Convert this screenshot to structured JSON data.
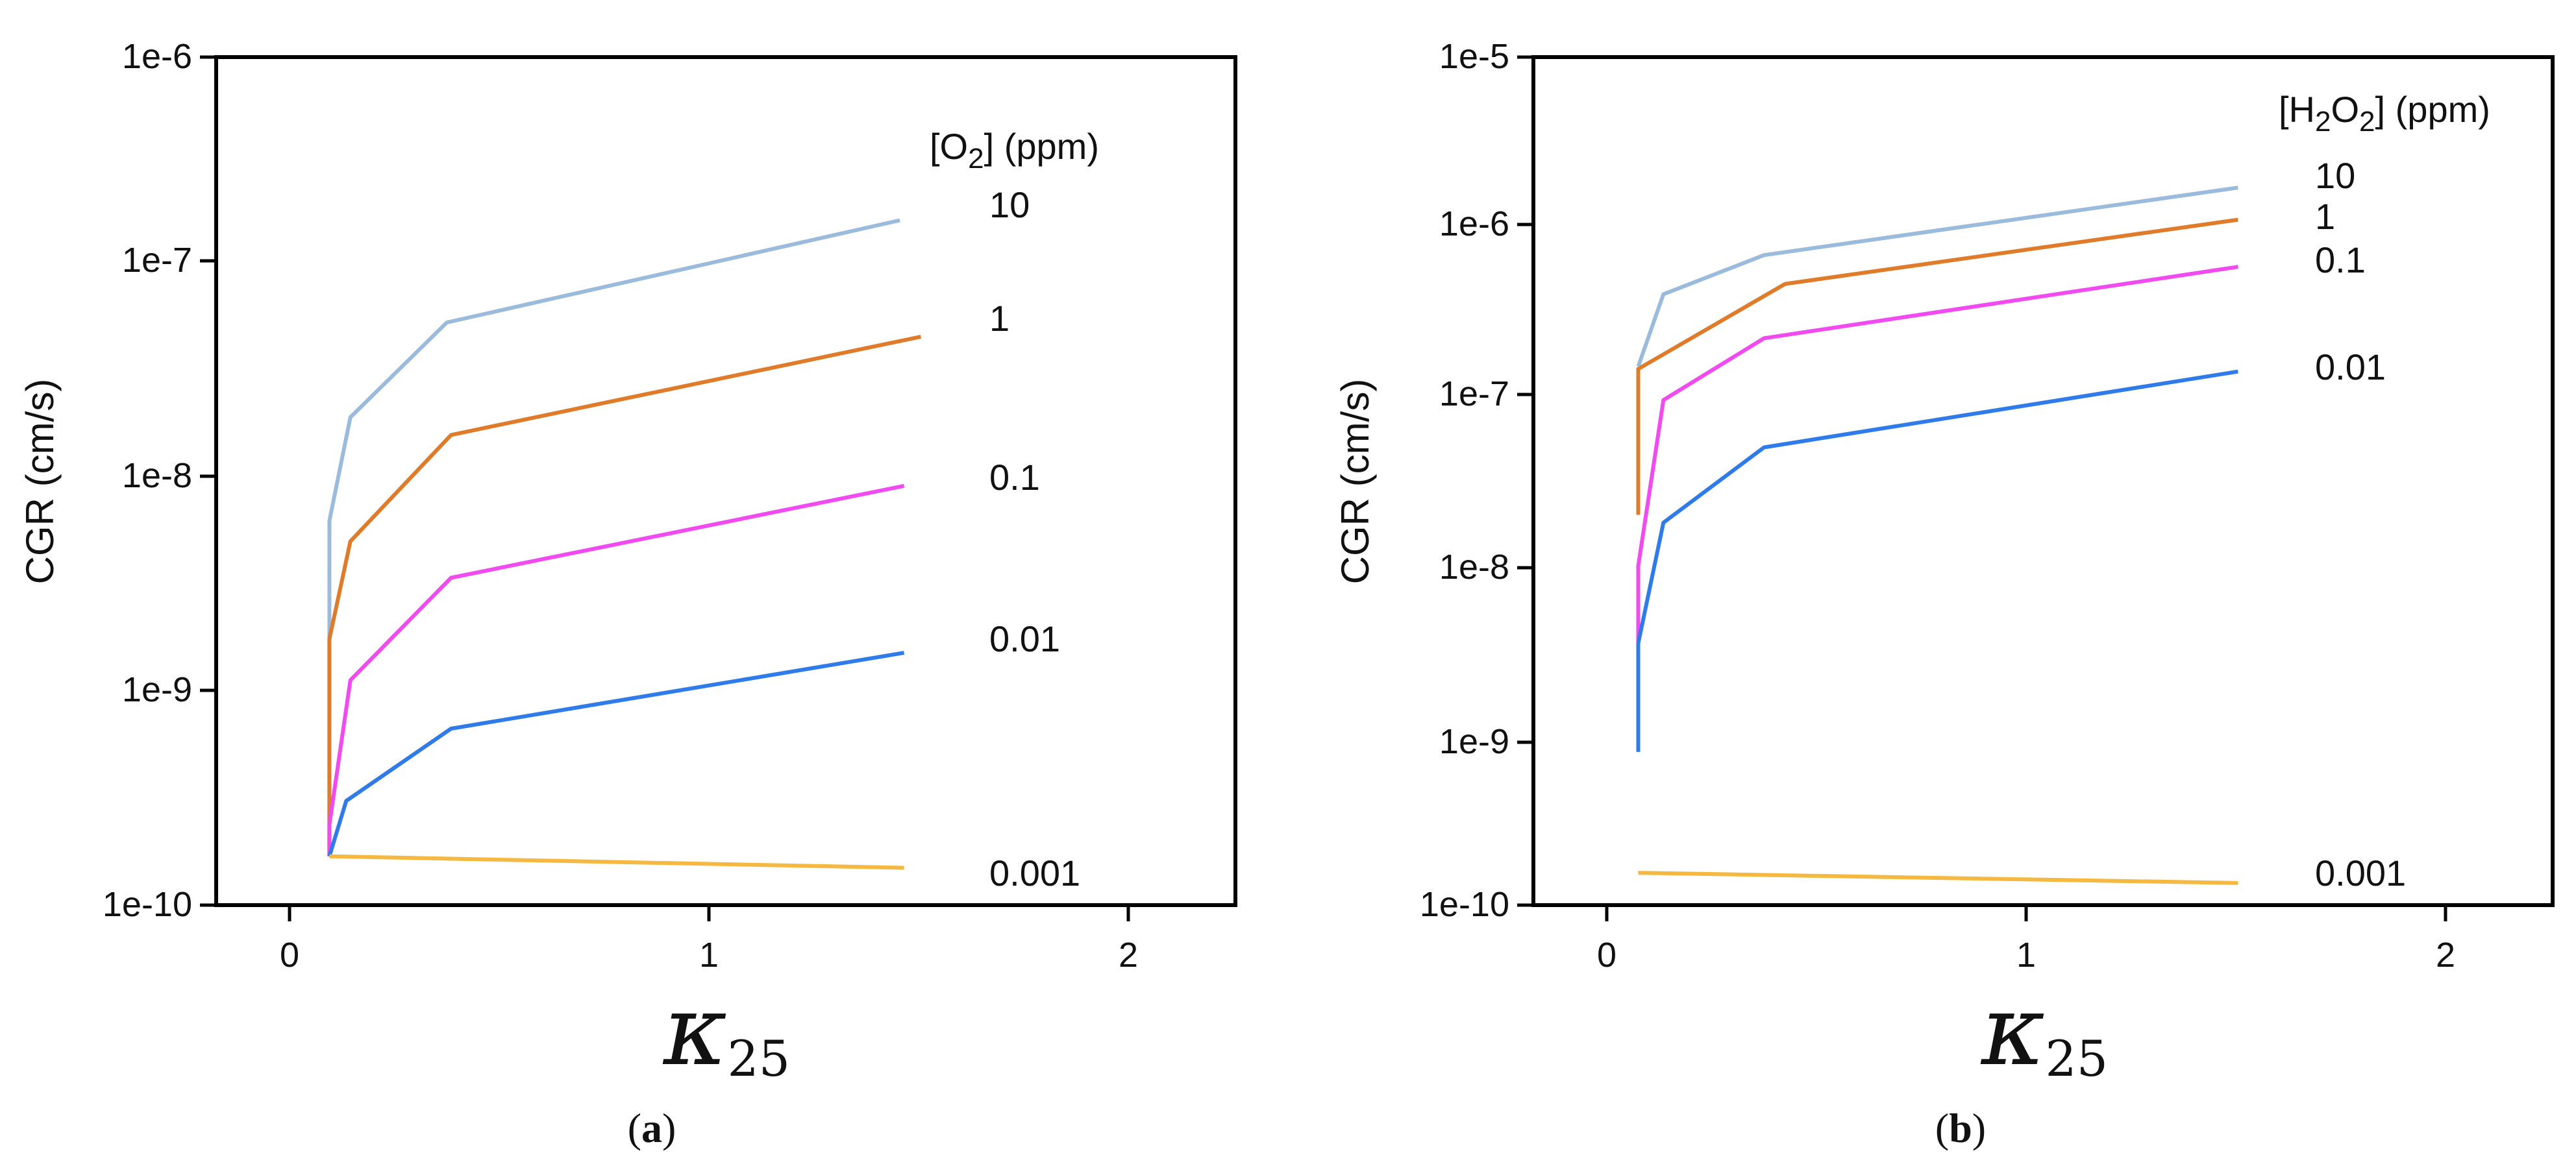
{
  "chart_data": [
    {
      "type": "line",
      "panel_label": "a",
      "title": "",
      "xlabel": {
        "symbol": "κ",
        "subscript": "25"
      },
      "ylabel": "CGR (cm/s)",
      "yscale": "log",
      "xlim": [
        -0.18,
        2.25
      ],
      "ylim_exp": [
        -10,
        -6
      ],
      "x_ticks": [
        0,
        1,
        2
      ],
      "x_tick_labels": [
        "0",
        "1",
        "2"
      ],
      "y_tick_labels": [
        "1e-10",
        "1e-9",
        "1e-8",
        "1e-7",
        "1e-6"
      ],
      "legend_title": {
        "prefix": "[O",
        "sub": "2",
        "suffix": "] (ppm)"
      },
      "series": [
        {
          "name": "10",
          "color": "#9bbbdc",
          "x": [
            0.09,
            0.09,
            0.09,
            0.14,
            0.37,
            1.45
          ],
          "y": [
            1.7e-10,
            2e-09,
            6.5e-09,
            2e-08,
            5.6e-08,
            1.7e-07
          ]
        },
        {
          "name": "1",
          "color": "#e07b2a",
          "x": [
            0.09,
            0.09,
            0.09,
            0.14,
            0.38,
            1.5
          ],
          "y": [
            1.7e-10,
            6.5e-10,
            1.8e-09,
            5.2e-09,
            1.65e-08,
            4.8e-08
          ]
        },
        {
          "name": "0.1",
          "color": "#f04af0",
          "x": [
            0.09,
            0.09,
            0.14,
            0.38,
            1.46
          ],
          "y": [
            1.7e-10,
            2.4e-10,
            1.15e-09,
            3.5e-09,
            9.5e-09
          ]
        },
        {
          "name": "0.01",
          "color": "#2f7bea",
          "x": [
            0.09,
            0.13,
            0.38,
            1.46
          ],
          "y": [
            1.7e-10,
            3.1e-10,
            6.8e-10,
            1.55e-09
          ]
        },
        {
          "name": "0.001",
          "color": "#f5b840",
          "x": [
            0.09,
            1.46
          ],
          "y": [
            1.7e-10,
            1.5e-10
          ]
        }
      ],
      "caption": "(a)"
    },
    {
      "type": "line",
      "panel_label": "b",
      "title": "",
      "xlabel": {
        "symbol": "κ",
        "subscript": "25"
      },
      "ylabel": "CGR (cm/s)",
      "yscale": "log",
      "xlim": [
        -0.18,
        2.25
      ],
      "ylim_exp": [
        -10,
        -5
      ],
      "x_ticks": [
        0,
        1,
        2
      ],
      "x_tick_labels": [
        "0",
        "1",
        "2"
      ],
      "y_tick_labels": [
        "1e-10",
        "1e-9",
        "1e-8",
        "1e-7",
        "1e-6",
        "1e-5"
      ],
      "legend_title": {
        "prefix": "[H",
        "sub1": "2",
        "mid": "O",
        "sub2": "2",
        "suffix": "] (ppm)"
      },
      "series": [
        {
          "name": "10",
          "color": "#9bbbdc",
          "x": [
            0.07,
            0.07,
            0.13,
            0.37,
            1.5
          ],
          "y": [
            1.5e-07,
            1.5e-07,
            4e-07,
            6.8e-07,
            1.7e-06
          ]
        },
        {
          "name": "1",
          "color": "#e07b2a",
          "x": [
            0.07,
            0.07,
            0.42,
            1.5
          ],
          "y": [
            2e-08,
            1.45e-07,
            4.6e-07,
            1.1e-06
          ]
        },
        {
          "name": "0.1",
          "color": "#f04af0",
          "x": [
            0.07,
            0.07,
            0.13,
            0.37,
            1.5
          ],
          "y": [
            3.5e-09,
            1e-08,
            9.5e-08,
            2.2e-07,
            5.8e-07
          ]
        },
        {
          "name": "0.01",
          "color": "#2f7bea",
          "x": [
            0.07,
            0.07,
            0.13,
            0.37,
            1.5
          ],
          "y": [
            8e-10,
            3.5e-09,
            1.8e-08,
            5e-08,
            1.4e-07
          ]
        },
        {
          "name": "0.001",
          "color": "#f5b840",
          "x": [
            0.07,
            1.5
          ],
          "y": [
            1.55e-10,
            1.35e-10
          ]
        }
      ],
      "caption": "(b)"
    }
  ]
}
